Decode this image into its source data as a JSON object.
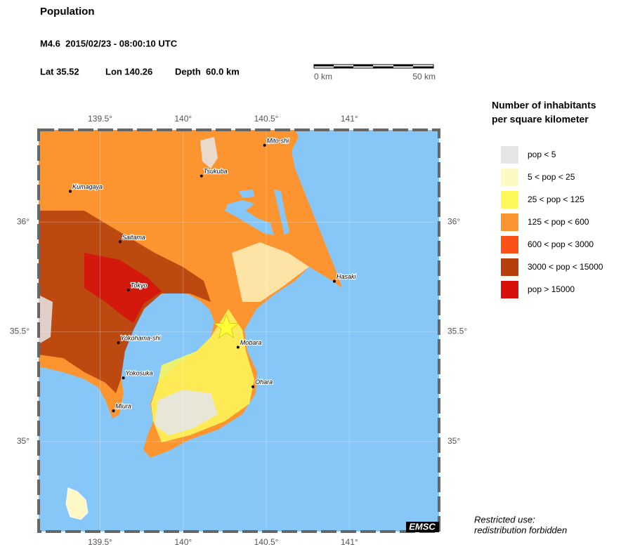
{
  "header": {
    "title": "Population",
    "event": "M4.6  2015/02/23 - 08:00:10 UTC",
    "lat": "Lat 35.52",
    "lon": "Lon 140.26",
    "depth": "Depth  60.0 km"
  },
  "scale_bar": {
    "start": "0 km",
    "end": "50 km"
  },
  "map": {
    "xlim": [
      139.13,
      141.54
    ],
    "ylim": [
      34.59,
      36.42
    ],
    "xticks": [
      {
        "value": 139.5,
        "label": "139.5°"
      },
      {
        "value": 140,
        "label": "140°"
      },
      {
        "value": 140.5,
        "label": "140.5°"
      },
      {
        "value": 141,
        "label": "141°"
      }
    ],
    "yticks": [
      {
        "value": 35,
        "label": "35°"
      },
      {
        "value": 35.5,
        "label": "35.5°"
      },
      {
        "value": 36,
        "label": "36°"
      }
    ],
    "cities": [
      {
        "name": "Mito-shi",
        "lon": 140.49,
        "lat": 36.35
      },
      {
        "name": "Tsukuba",
        "lon": 140.11,
        "lat": 36.21
      },
      {
        "name": "Kumagaya",
        "lon": 139.32,
        "lat": 36.14
      },
      {
        "name": "Saitama",
        "lon": 139.62,
        "lat": 35.91
      },
      {
        "name": "Tokyo",
        "lon": 139.67,
        "lat": 35.69
      },
      {
        "name": "Hasaki",
        "lon": 140.91,
        "lat": 35.73
      },
      {
        "name": "Yokohama-shi",
        "lon": 139.61,
        "lat": 35.45
      },
      {
        "name": "Mobara",
        "lon": 140.33,
        "lat": 35.43
      },
      {
        "name": "Yokosuka",
        "lon": 139.64,
        "lat": 35.29
      },
      {
        "name": "Ohara",
        "lon": 140.42,
        "lat": 35.25
      },
      {
        "name": "Miura",
        "lon": 139.58,
        "lat": 35.14
      }
    ],
    "epicenter": {
      "lon": 140.26,
      "lat": 35.52,
      "color": "#ffff33"
    },
    "logo": "EMSC"
  },
  "legend": {
    "title": [
      "Number of inhabitants",
      "per square kilometer"
    ],
    "items": [
      {
        "label": "pop < 5",
        "color": "#e6e6e6"
      },
      {
        "label": "5 < pop < 25",
        "color": "#fdf8c4"
      },
      {
        "label": "25 < pop < 125",
        "color": "#fdf95a"
      },
      {
        "label": "125 < pop < 600",
        "color": "#fc9430"
      },
      {
        "label": "600 < pop < 3000",
        "color": "#fb5016"
      },
      {
        "label": "3000 < pop < 15000",
        "color": "#b5400d"
      },
      {
        "label": "pop > 15000",
        "color": "#d7100a"
      }
    ]
  },
  "note": [
    "Restricted use:",
    "redistribution forbidden"
  ]
}
